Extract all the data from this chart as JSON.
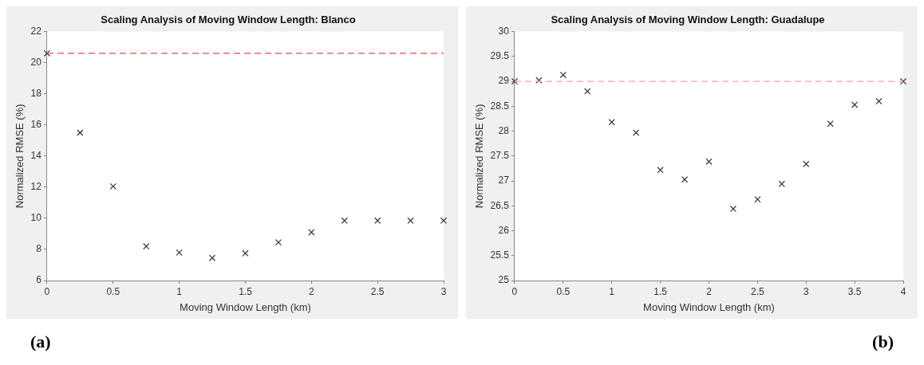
{
  "chart_data": [
    {
      "type": "scatter",
      "title": "Scaling Analysis of Moving Window Length: Blanco",
      "xlabel": "Moving Window Length (km)",
      "ylabel": "Normalized RMSE (%)",
      "annotations": [
        "(a)"
      ],
      "x": [
        0,
        0.25,
        0.5,
        0.75,
        1,
        1.25,
        1.5,
        1.75,
        2,
        2.25,
        2.5,
        2.75,
        3
      ],
      "series": [
        {
          "color": "#333333",
          "values": [
            20.6,
            15.5,
            12.05,
            8.2,
            7.8,
            7.45,
            7.75,
            8.45,
            9.1,
            9.85,
            9.85,
            9.85,
            9.85
          ]
        }
      ],
      "xlim": [
        0,
        3
      ],
      "xticks": [
        0,
        0.5,
        1,
        1.5,
        2,
        2.5,
        3
      ],
      "ylim": [
        6,
        22
      ],
      "yticks": [
        6,
        8,
        10,
        12,
        14,
        16,
        18,
        20,
        22
      ],
      "ref_lines": [
        {
          "axis": "y",
          "value": 20.6,
          "color": "#e84a4a",
          "line_style": "dashed"
        }
      ],
      "marker": "cross",
      "grid": false,
      "legend": false
    },
    {
      "type": "scatter",
      "title": "Scaling Analysis of Moving Window Length: Guadalupe",
      "xlabel": "Moving Window Length (km)",
      "ylabel": "Normalized RMSE (%)",
      "annotations": [
        "(b)"
      ],
      "x": [
        0,
        0.25,
        0.5,
        0.75,
        1,
        1.25,
        1.5,
        1.75,
        2,
        2.25,
        2.5,
        2.75,
        3,
        3.25,
        3.5,
        3.75,
        4
      ],
      "series": [
        {
          "color": "#333333",
          "values": [
            29.0,
            29.02,
            29.13,
            28.8,
            28.18,
            27.97,
            27.22,
            27.03,
            27.39,
            26.44,
            26.63,
            26.94,
            27.34,
            28.15,
            28.53,
            28.6,
            29.0
          ]
        }
      ],
      "xlim": [
        0,
        4
      ],
      "xticks": [
        0,
        0.5,
        1,
        1.5,
        2,
        2.5,
        3,
        3.5,
        4
      ],
      "ylim": [
        25,
        30
      ],
      "yticks": [
        25,
        25.5,
        26,
        26.5,
        27,
        27.5,
        28,
        28.5,
        29,
        29.5,
        30
      ],
      "ref_lines": [
        {
          "axis": "y",
          "value": 29.0,
          "color": "#f4a3a3",
          "line_style": "dashed"
        }
      ],
      "marker": "cross",
      "grid": false,
      "legend": false
    }
  ]
}
